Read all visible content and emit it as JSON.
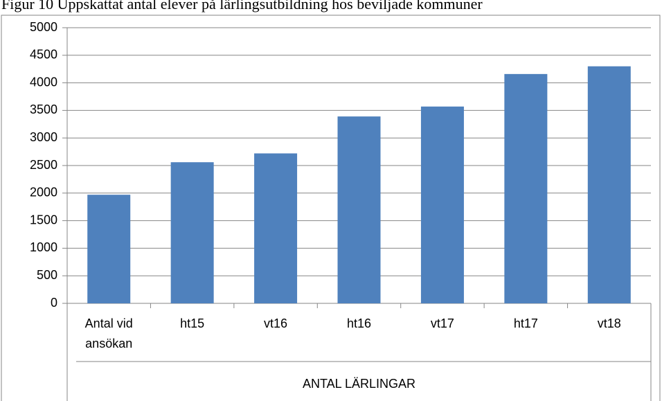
{
  "chart_data": {
    "type": "bar",
    "title": "Figur 10 Uppskattat antal elever på lärlingsutbildning hos beviljade kommuner",
    "xlabel": "ANTAL LÄRLINGAR",
    "categories": [
      "Antal vid ansökan",
      "ht15",
      "vt16",
      "ht16",
      "vt17",
      "ht17",
      "vt18"
    ],
    "values": [
      1970,
      2560,
      2720,
      3390,
      3570,
      4160,
      4300
    ],
    "color": "#4f81bd",
    "ylim": [
      0,
      5000
    ],
    "yticks": [
      0,
      500,
      1000,
      1500,
      2000,
      2500,
      3000,
      3500,
      4000,
      4500,
      5000
    ],
    "grid": true
  }
}
